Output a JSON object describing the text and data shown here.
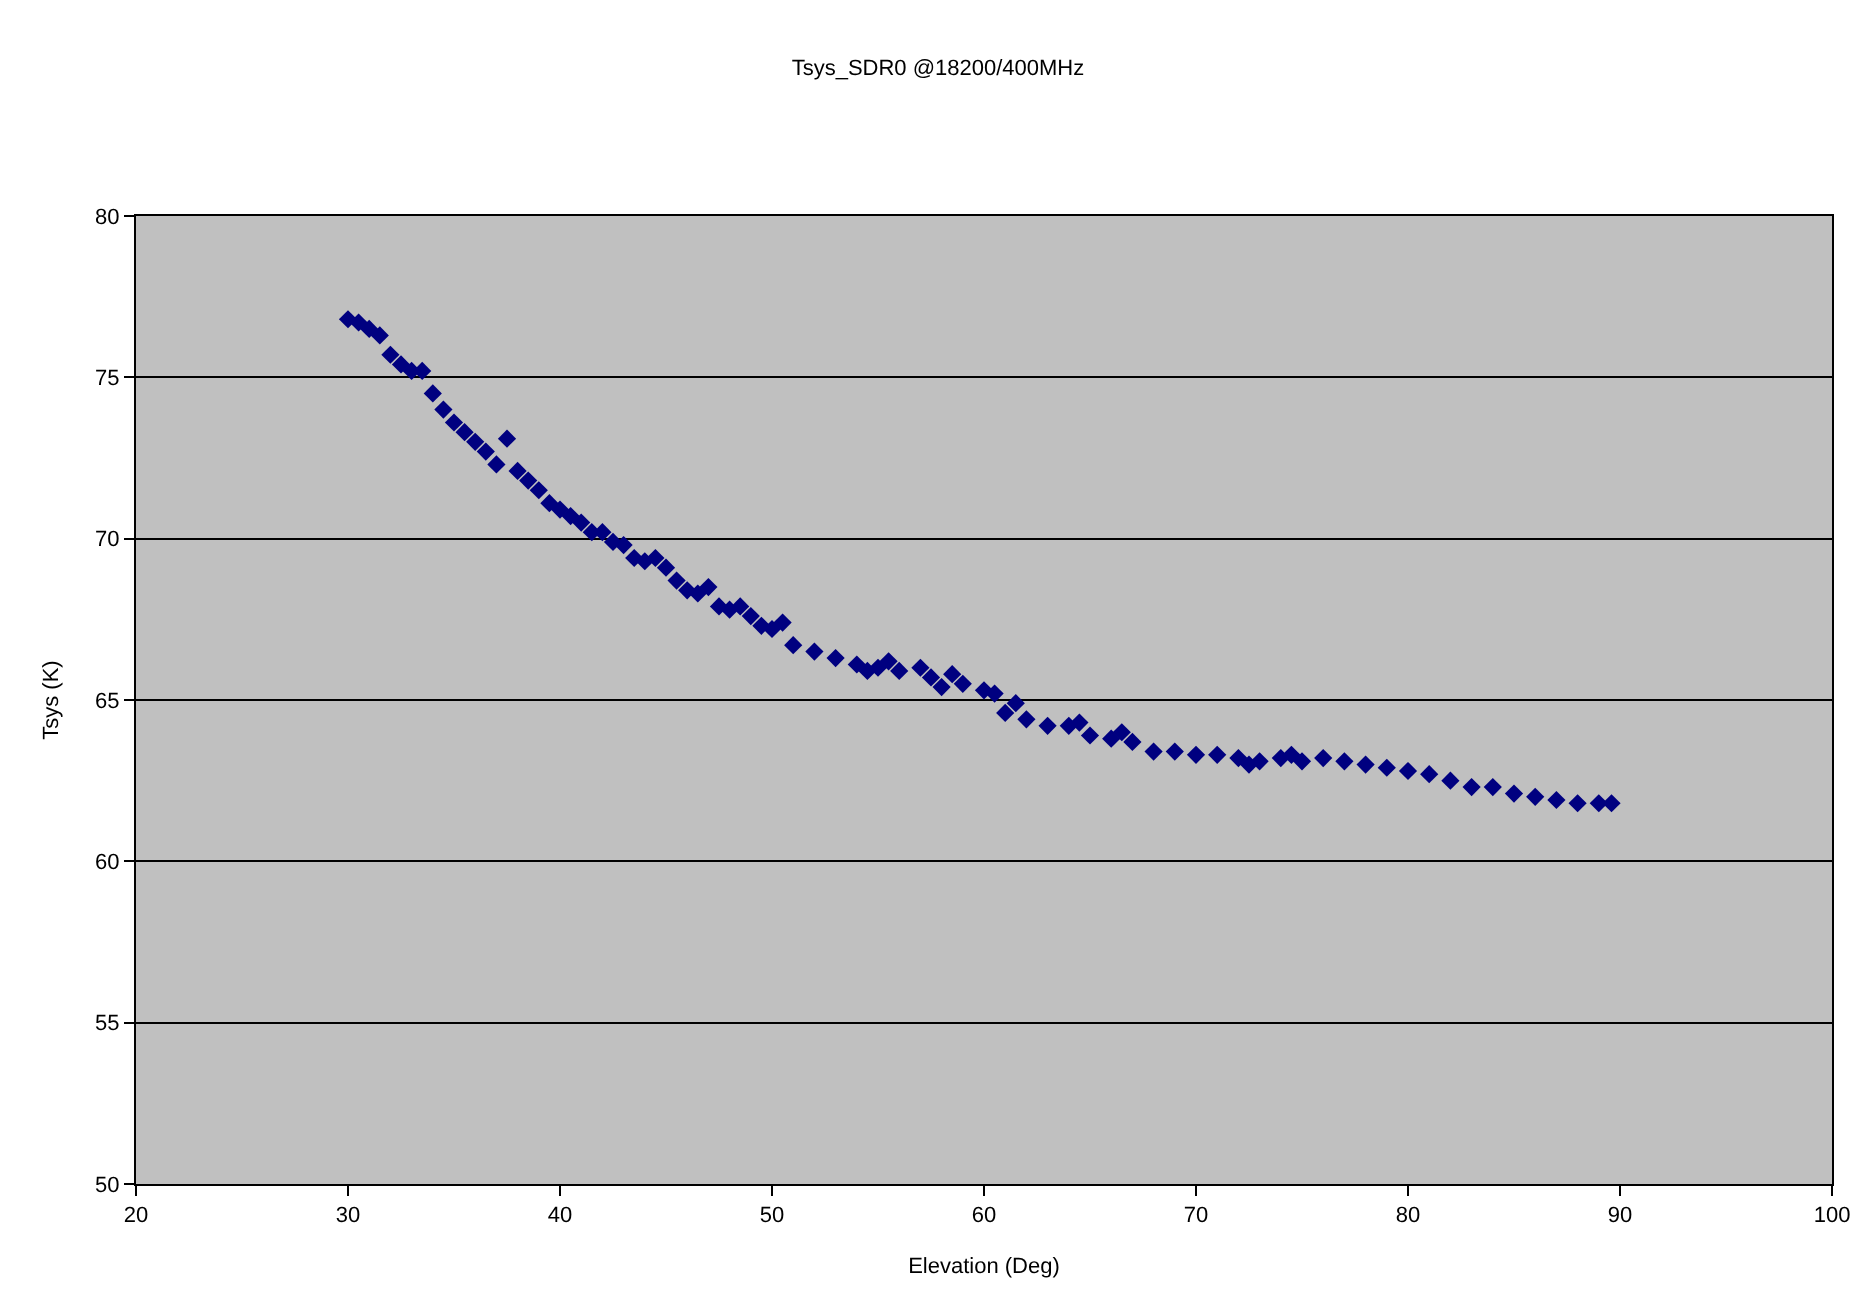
{
  "chart_data": {
    "type": "scatter",
    "title": "Tsys_SDR0 @18200/400MHz",
    "xlabel": "Elevation (Deg)",
    "ylabel": "Tsys (K)",
    "x": [
      30,
      30.5,
      31,
      31.5,
      32,
      32.5,
      33,
      33.5,
      34,
      34.5,
      35,
      35.5,
      36,
      36.5,
      37,
      37.5,
      38,
      38.5,
      39,
      39.5,
      40,
      40.5,
      41,
      41.5,
      42,
      42.5,
      43,
      43.5,
      44,
      44.5,
      45,
      45.5,
      46,
      46.5,
      47,
      47.5,
      48,
      48.5,
      49,
      49.5,
      50,
      50.5,
      51,
      52,
      53,
      54,
      54.5,
      55,
      55.5,
      56,
      57,
      57.5,
      58,
      58.5,
      59,
      60,
      60.5,
      61,
      61.5,
      62,
      63,
      64,
      64.5,
      65,
      66,
      66.5,
      67,
      68,
      69,
      70,
      71,
      72,
      72.5,
      73,
      74,
      74.5,
      75,
      76,
      77,
      78,
      79,
      80,
      81,
      82,
      83,
      84,
      85,
      86,
      87,
      88,
      89,
      89.6
    ],
    "series": [
      {
        "color": "#000080",
        "values": [
          76.8,
          76.7,
          76.5,
          76.3,
          75.7,
          75.4,
          75.2,
          75.2,
          74.5,
          74.0,
          73.6,
          73.3,
          73.0,
          72.7,
          72.3,
          73.1,
          72.1,
          71.8,
          71.5,
          71.1,
          70.9,
          70.7,
          70.5,
          70.2,
          70.2,
          69.9,
          69.8,
          69.4,
          69.3,
          69.4,
          69.1,
          68.7,
          68.4,
          68.3,
          68.5,
          67.9,
          67.8,
          67.9,
          67.6,
          67.3,
          67.2,
          67.4,
          66.7,
          66.5,
          66.3,
          66.1,
          65.9,
          66.0,
          66.2,
          65.9,
          66.0,
          65.7,
          65.4,
          65.8,
          65.5,
          65.3,
          65.2,
          64.6,
          64.9,
          64.4,
          64.2,
          64.2,
          64.3,
          63.9,
          63.8,
          64.0,
          63.7,
          63.4,
          63.4,
          63.3,
          63.3,
          63.2,
          63.0,
          63.1,
          63.2,
          63.3,
          63.1,
          63.2,
          63.1,
          63.0,
          62.9,
          62.8,
          62.7,
          62.5,
          62.3,
          62.3,
          62.1,
          62.0,
          61.9,
          61.8,
          61.8,
          61.8
        ]
      }
    ],
    "xlim": [
      20,
      100
    ],
    "xticks": [
      20,
      30,
      40,
      50,
      60,
      70,
      80,
      90,
      100
    ],
    "ylim": [
      50,
      80
    ],
    "yticks": [
      50,
      55,
      60,
      65,
      70,
      75,
      80
    ],
    "grid": "y",
    "marker": "diamond"
  }
}
